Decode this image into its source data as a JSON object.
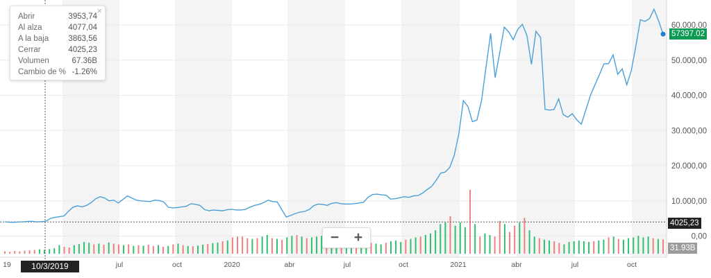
{
  "chart_data": {
    "type": "line",
    "title": "",
    "xlabel": "",
    "ylabel": "",
    "x_tick_labels": [
      "19",
      "jul",
      "oct",
      "2020",
      "abr",
      "jul",
      "oct",
      "2021",
      "abr",
      "jul",
      "oct"
    ],
    "y_ticks": [
      {
        "value": 60000,
        "label": "60.000,00"
      },
      {
        "value": 50000,
        "label": "50.000,00"
      },
      {
        "value": 40000,
        "label": "40.000,00"
      },
      {
        "value": 30000,
        "label": "30.000,00"
      },
      {
        "value": 20000,
        "label": "20.000,00"
      },
      {
        "value": 10000,
        "label": "10.000,00"
      },
      {
        "value": 0,
        "label": "0,00"
      }
    ],
    "ylim": [
      0,
      67000
    ],
    "grid": true,
    "line_color": "#4a9fd8",
    "up_color": "#2fbf71",
    "down_color": "#f08080",
    "price_series": [
      4050,
      3950,
      3900,
      4000,
      4050,
      4150,
      4200,
      4025,
      4100,
      4200,
      5000,
      5300,
      5500,
      5700,
      7000,
      8200,
      8600,
      8300,
      8700,
      9500,
      10600,
      11200,
      10800,
      10000,
      10200,
      9400,
      10400,
      11400,
      10800,
      10200,
      10000,
      9900,
      9800,
      10200,
      10100,
      9700,
      8200,
      8000,
      8100,
      8300,
      8500,
      9200,
      9000,
      8700,
      7500,
      7200,
      7400,
      7300,
      7200,
      7500,
      7600,
      7400,
      7400,
      7600,
      8200,
      8700,
      9000,
      9500,
      10200,
      9800,
      9700,
      7500,
      5400,
      5900,
      6400,
      6800,
      7000,
      7500,
      8600,
      9100,
      9000,
      8700,
      9300,
      9500,
      9200,
      9100,
      9100,
      9200,
      9400,
      9600,
      11000,
      11800,
      11900,
      11700,
      11600,
      10500,
      10600,
      10900,
      11200,
      11000,
      11400,
      11500,
      12200,
      13200,
      14100,
      15800,
      17900,
      18200,
      19500,
      23000,
      29000,
      38500,
      36800,
      32500,
      33000,
      38500,
      48000,
      57600,
      45000,
      52000,
      59400,
      58000,
      55800,
      58800,
      60200,
      57000,
      48800,
      58200,
      56500,
      36000,
      35800,
      36000,
      39000,
      34500,
      33800,
      34800,
      33000,
      31800,
      36000,
      40000,
      43000,
      46000,
      49000,
      49000,
      51500,
      46000,
      47500,
      43000,
      47000,
      54000,
      61500,
      61000,
      61800,
      64500,
      61200,
      57397
    ],
    "volume_bars": [
      {
        "v": 0.15,
        "up": false
      },
      {
        "v": 0.12,
        "up": false
      },
      {
        "v": 0.18,
        "up": false
      },
      {
        "v": 0.15,
        "up": false
      },
      {
        "v": 0.2,
        "up": false
      },
      {
        "v": 0.22,
        "up": false
      },
      {
        "v": 0.25,
        "up": false
      },
      {
        "v": 0.28,
        "up": true
      },
      {
        "v": 0.25,
        "up": true
      },
      {
        "v": 0.3,
        "up": true
      },
      {
        "v": 0.35,
        "up": true
      },
      {
        "v": 0.55,
        "up": true
      },
      {
        "v": 0.45,
        "up": false
      },
      {
        "v": 0.4,
        "up": false
      },
      {
        "v": 0.55,
        "up": true
      },
      {
        "v": 0.62,
        "up": true
      },
      {
        "v": 0.75,
        "up": true
      },
      {
        "v": 0.7,
        "up": true
      },
      {
        "v": 0.6,
        "up": false
      },
      {
        "v": 0.65,
        "up": true
      },
      {
        "v": 0.58,
        "up": false
      },
      {
        "v": 0.72,
        "up": true
      },
      {
        "v": 0.65,
        "up": false
      },
      {
        "v": 0.6,
        "up": false
      },
      {
        "v": 0.55,
        "up": true
      },
      {
        "v": 0.6,
        "up": false
      },
      {
        "v": 0.5,
        "up": true
      },
      {
        "v": 0.55,
        "up": false
      },
      {
        "v": 0.52,
        "up": true
      },
      {
        "v": 0.58,
        "up": false
      },
      {
        "v": 0.5,
        "up": false
      },
      {
        "v": 0.55,
        "up": true
      },
      {
        "v": 0.45,
        "up": false
      },
      {
        "v": 0.5,
        "up": true
      },
      {
        "v": 0.6,
        "up": false
      },
      {
        "v": 0.65,
        "up": true
      },
      {
        "v": 0.55,
        "up": false
      },
      {
        "v": 0.5,
        "up": true
      },
      {
        "v": 0.48,
        "up": false
      },
      {
        "v": 0.52,
        "up": true
      },
      {
        "v": 0.58,
        "up": true
      },
      {
        "v": 0.62,
        "up": false
      },
      {
        "v": 0.68,
        "up": true
      },
      {
        "v": 0.72,
        "up": true
      },
      {
        "v": 0.8,
        "up": false
      },
      {
        "v": 0.85,
        "up": true
      },
      {
        "v": 1.05,
        "up": false
      },
      {
        "v": 1.1,
        "up": false
      },
      {
        "v": 1.1,
        "up": false
      },
      {
        "v": 1.0,
        "up": false
      },
      {
        "v": 0.95,
        "up": true
      },
      {
        "v": 1.0,
        "up": false
      },
      {
        "v": 1.1,
        "up": true
      },
      {
        "v": 1.2,
        "up": true
      },
      {
        "v": 1.0,
        "up": false
      },
      {
        "v": 0.95,
        "up": true
      },
      {
        "v": 0.9,
        "up": false
      },
      {
        "v": 1.05,
        "up": true
      },
      {
        "v": 1.15,
        "up": true
      },
      {
        "v": 1.2,
        "up": false
      },
      {
        "v": 1.1,
        "up": true
      },
      {
        "v": 1.0,
        "up": false
      },
      {
        "v": 1.05,
        "up": true
      },
      {
        "v": 1.1,
        "up": true
      },
      {
        "v": 1.15,
        "up": true
      },
      {
        "v": 1.0,
        "up": false
      },
      {
        "v": 0.9,
        "up": true
      },
      {
        "v": 0.85,
        "up": true
      },
      {
        "v": 0.95,
        "up": false
      },
      {
        "v": 1.05,
        "up": true
      },
      {
        "v": 1.0,
        "up": true
      },
      {
        "v": 0.9,
        "up": false
      },
      {
        "v": 0.8,
        "up": true
      },
      {
        "v": 0.75,
        "up": true
      },
      {
        "v": 0.7,
        "up": false
      },
      {
        "v": 0.65,
        "up": true
      },
      {
        "v": 0.6,
        "up": true
      },
      {
        "v": 0.7,
        "up": false
      },
      {
        "v": 0.8,
        "up": true
      },
      {
        "v": 0.85,
        "up": true
      },
      {
        "v": 0.75,
        "up": true
      },
      {
        "v": 0.9,
        "up": false
      },
      {
        "v": 0.95,
        "up": true
      },
      {
        "v": 1.05,
        "up": true
      },
      {
        "v": 1.1,
        "up": false
      },
      {
        "v": 1.2,
        "up": true
      },
      {
        "v": 1.3,
        "up": true
      },
      {
        "v": 1.5,
        "up": true
      },
      {
        "v": 1.9,
        "up": true
      },
      {
        "v": 2.0,
        "up": true
      },
      {
        "v": 2.4,
        "up": false
      },
      {
        "v": 1.8,
        "up": true
      },
      {
        "v": 2.0,
        "up": true
      },
      {
        "v": 1.7,
        "up": true
      },
      {
        "v": 4.1,
        "up": false
      },
      {
        "v": 1.9,
        "up": true
      },
      {
        "v": 1.1,
        "up": false
      },
      {
        "v": 1.3,
        "up": true
      },
      {
        "v": 1.2,
        "up": true
      },
      {
        "v": 1.1,
        "up": false
      },
      {
        "v": 2.1,
        "up": false
      },
      {
        "v": 1.9,
        "up": true
      },
      {
        "v": 1.4,
        "up": false
      },
      {
        "v": 1.8,
        "up": false
      },
      {
        "v": 2.0,
        "up": true
      },
      {
        "v": 2.3,
        "up": false
      },
      {
        "v": 1.5,
        "up": true
      },
      {
        "v": 1.1,
        "up": true
      },
      {
        "v": 1.0,
        "up": false
      },
      {
        "v": 0.9,
        "up": true
      },
      {
        "v": 0.85,
        "up": true
      },
      {
        "v": 0.8,
        "up": false
      },
      {
        "v": 0.7,
        "up": false
      },
      {
        "v": 0.6,
        "up": true
      },
      {
        "v": 0.75,
        "up": true
      },
      {
        "v": 0.8,
        "up": true
      },
      {
        "v": 0.85,
        "up": true
      },
      {
        "v": 0.8,
        "up": true
      },
      {
        "v": 0.75,
        "up": true
      },
      {
        "v": 0.8,
        "up": false
      },
      {
        "v": 0.85,
        "up": true
      },
      {
        "v": 0.9,
        "up": true
      },
      {
        "v": 1.05,
        "up": false
      },
      {
        "v": 1.1,
        "up": true
      },
      {
        "v": 0.95,
        "up": false
      },
      {
        "v": 0.9,
        "up": true
      },
      {
        "v": 1.0,
        "up": true
      },
      {
        "v": 1.05,
        "up": true
      },
      {
        "v": 1.15,
        "up": true
      },
      {
        "v": 1.05,
        "up": true
      },
      {
        "v": 1.1,
        "up": true
      },
      {
        "v": 1.0,
        "up": false
      },
      {
        "v": 0.95,
        "up": true
      },
      {
        "v": 0.92,
        "up": false
      }
    ],
    "last_price_label": "57397.02",
    "crosshair_price_label": "4025,23",
    "volume_label": "31.93B",
    "crosshair_date": "10/3/2019"
  },
  "tooltip": {
    "rows": [
      {
        "label": "Abrir",
        "value": "3953,74"
      },
      {
        "label": "Al alza",
        "value": "4077,04"
      },
      {
        "label": "A la baja",
        "value": "3863,56"
      },
      {
        "label": "Cerrar",
        "value": "4025,23"
      },
      {
        "label": "Volumen",
        "value": "67.36B"
      },
      {
        "label": "Cambio de %",
        "value": "-1.26%"
      }
    ],
    "close_glyph": "×"
  },
  "zoom": {
    "minus": "−",
    "plus": "+"
  }
}
